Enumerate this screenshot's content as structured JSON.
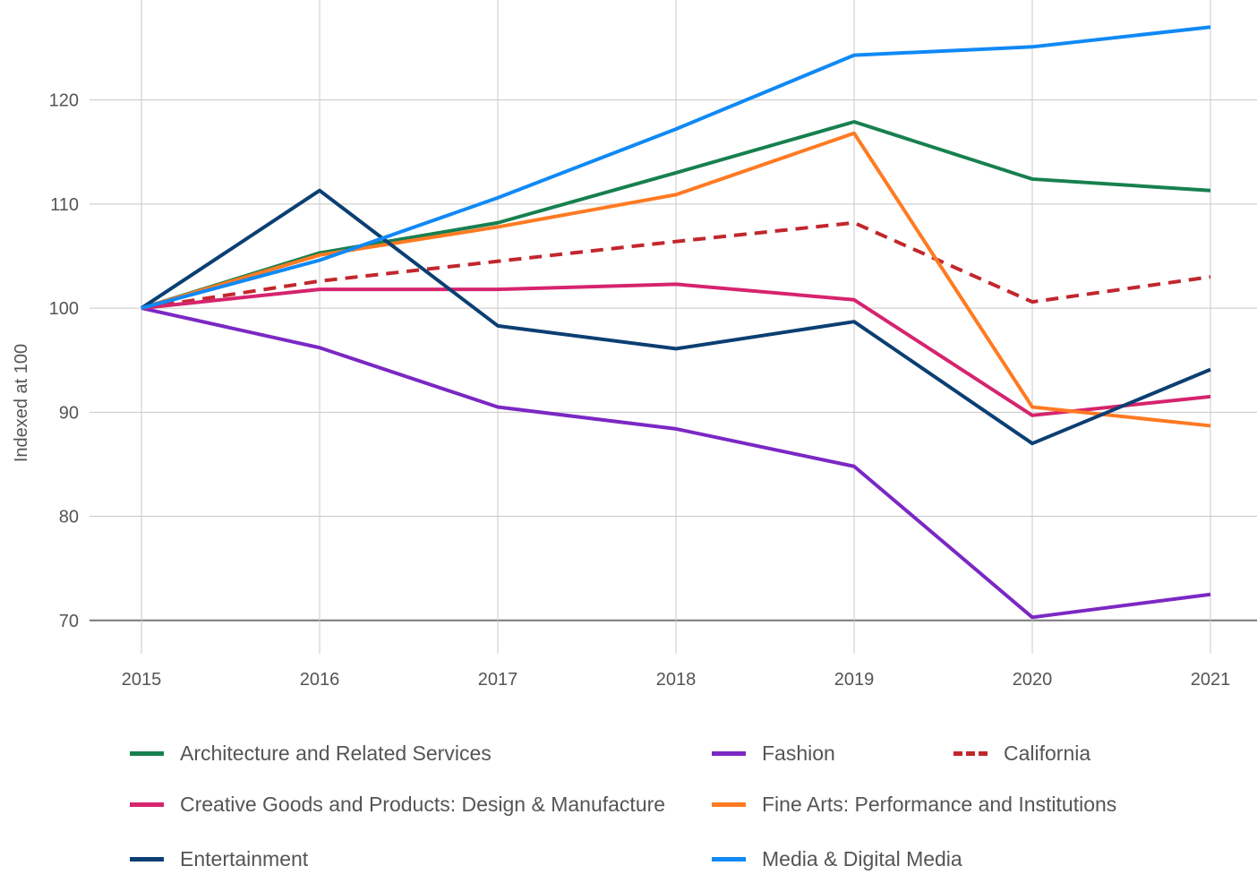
{
  "chart_data": {
    "type": "line",
    "title": "",
    "xlabel": "",
    "ylabel": "Indexed at 100",
    "x": [
      "2015",
      "2016",
      "2017",
      "2018",
      "2019",
      "2020",
      "2021"
    ],
    "yticks": [
      70,
      80,
      90,
      100,
      110,
      120
    ],
    "ylim": [
      66.8,
      129.6
    ],
    "grid": true,
    "legend_position": "bottom",
    "series": [
      {
        "name": "Architecture and Related Services",
        "color": "#17804f",
        "dash": false,
        "values": [
          100,
          105.3,
          108.2,
          113.0,
          117.9,
          112.4,
          111.3
        ]
      },
      {
        "name": "Fashion",
        "color": "#7b28c4",
        "dash": false,
        "values": [
          100,
          96.2,
          90.5,
          88.4,
          84.8,
          70.3,
          72.5
        ]
      },
      {
        "name": "California",
        "color": "#c1272d",
        "dash": true,
        "values": [
          100,
          102.6,
          104.5,
          106.4,
          108.2,
          100.6,
          103.0
        ]
      },
      {
        "name": "Creative Goods and Products: Design & Manufacture",
        "color": "#d6246e",
        "dash": false,
        "values": [
          100,
          101.8,
          101.8,
          102.3,
          100.8,
          89.7,
          91.5
        ]
      },
      {
        "name": "Fine Arts: Performance and Institutions",
        "color": "#ff7a22",
        "dash": false,
        "values": [
          100,
          105.1,
          107.8,
          110.9,
          116.8,
          90.5,
          88.7
        ]
      },
      {
        "name": "Entertainment",
        "color": "#0b3f73",
        "dash": false,
        "values": [
          100,
          111.3,
          98.3,
          96.1,
          98.7,
          87.0,
          94.1
        ]
      },
      {
        "name": "Media & Digital Media",
        "color": "#0f89f5",
        "dash": false,
        "values": [
          100,
          104.6,
          110.6,
          117.2,
          124.3,
          125.1,
          127.0
        ]
      }
    ]
  }
}
